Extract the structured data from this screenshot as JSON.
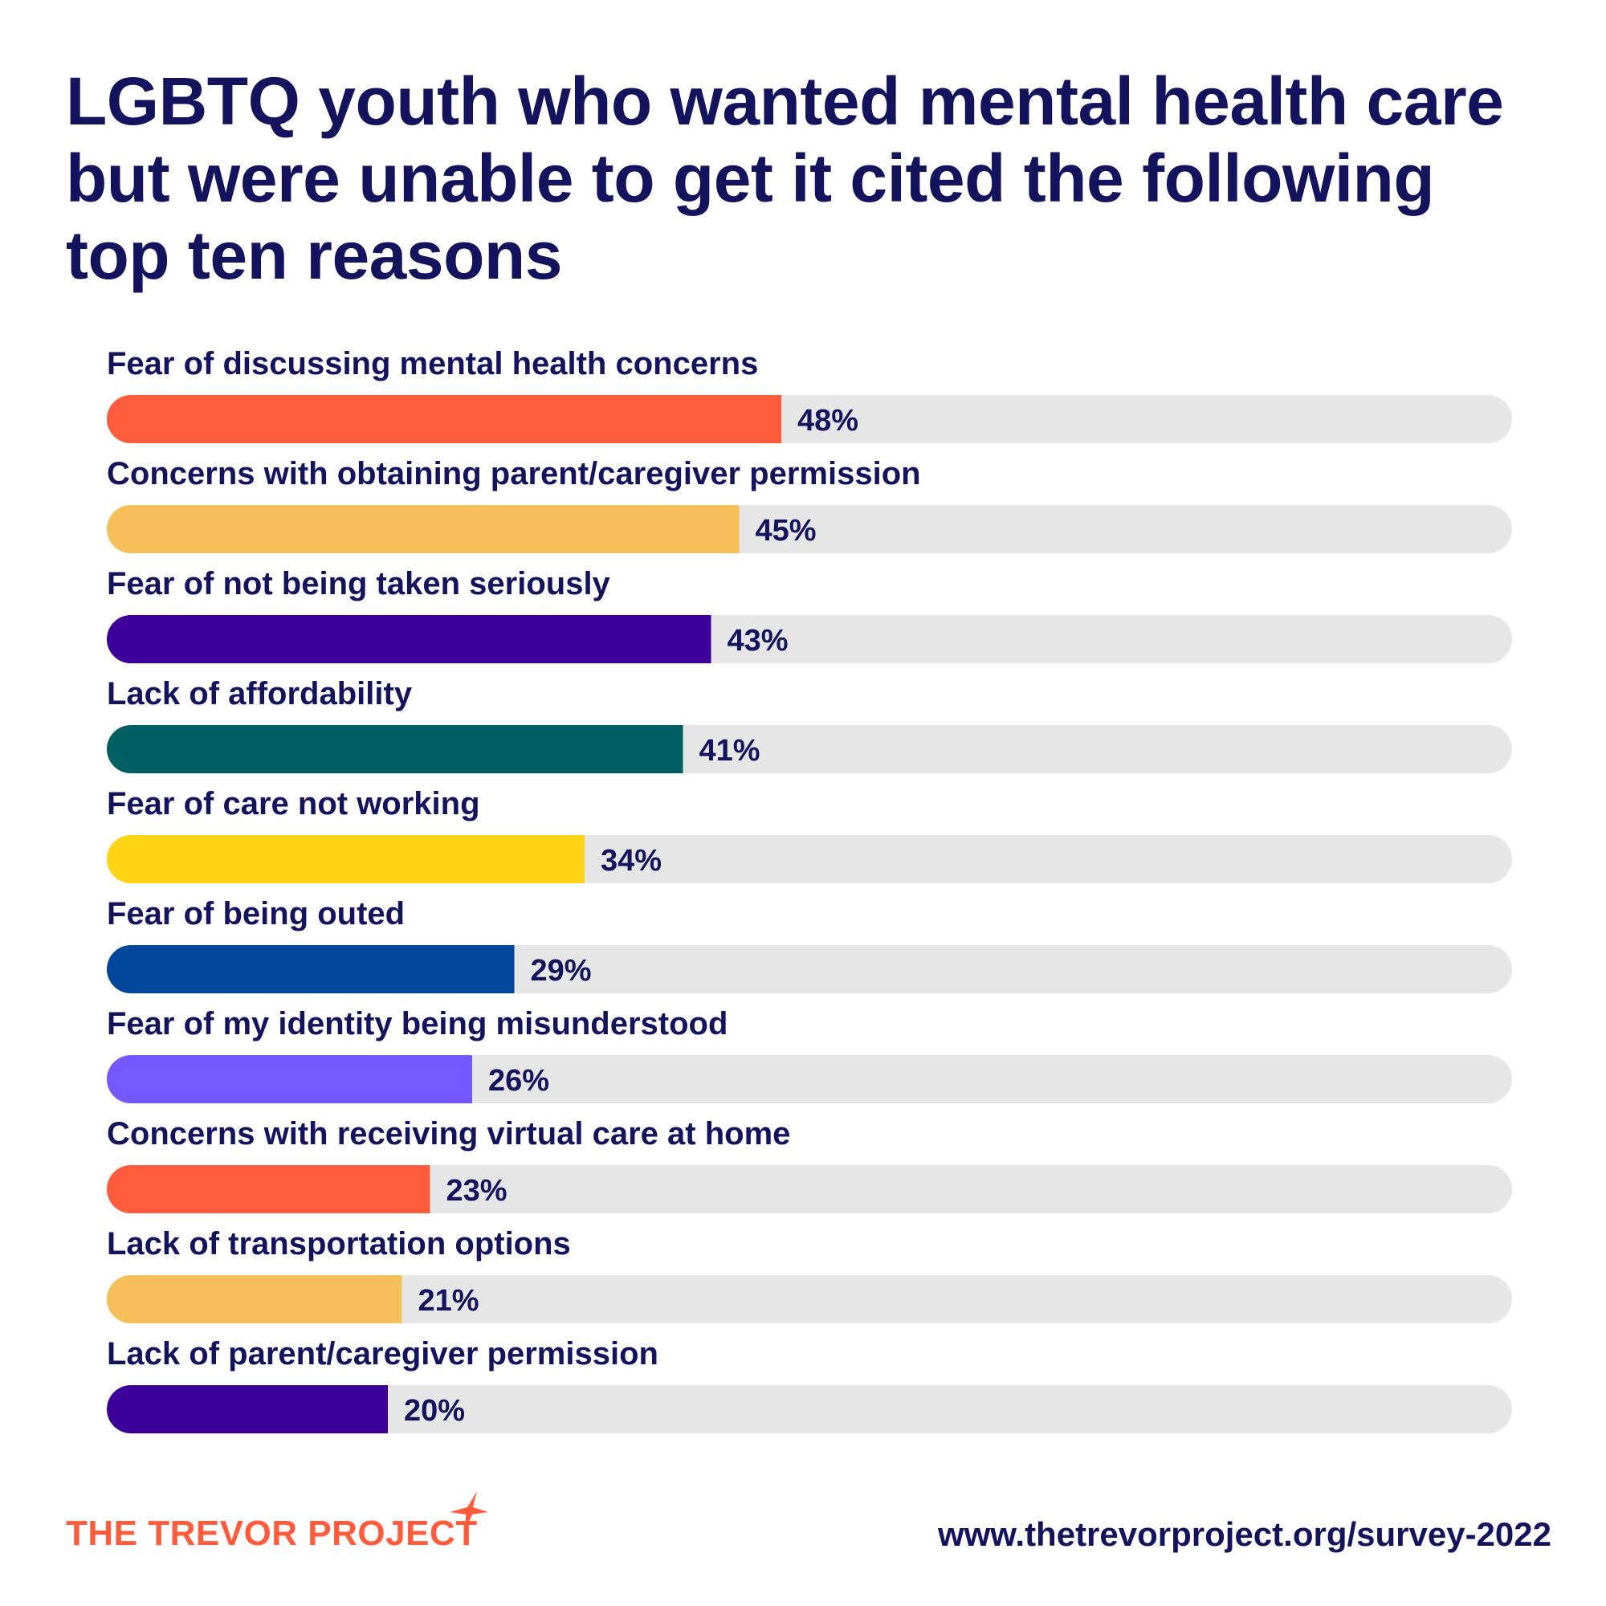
{
  "chart_data": {
    "type": "bar",
    "orientation": "horizontal",
    "title": "LGBTQ youth who wanted mental health care but were unable to get it cited the following top ten reasons",
    "categories": [
      "Fear of discussing mental health concerns",
      "Concerns with obtaining parent/caregiver permission",
      "Fear of not being taken seriously",
      "Lack of affordability",
      "Fear of care not working",
      "Fear of being outed",
      "Fear of my identity being misunderstood",
      "Concerns with receiving virtual care at home",
      "Lack of transportation options",
      "Lack of parent/caregiver permission"
    ],
    "values": [
      48,
      45,
      43,
      41,
      34,
      29,
      26,
      23,
      21,
      20
    ],
    "value_labels": [
      "48%",
      "45%",
      "43%",
      "41%",
      "34%",
      "29%",
      "26%",
      "23%",
      "21%",
      "20%"
    ],
    "bar_colors": [
      "#ff5c3d",
      "#f7bf5a",
      "#3d0099",
      "#005f63",
      "#ffd414",
      "#00479b",
      "#7359ff",
      "#ff5c3d",
      "#f7bf5a",
      "#3d0099"
    ],
    "track_color": "#e6e6e6",
    "xlim": [
      0,
      100
    ],
    "xlabel": "",
    "ylabel": "",
    "grid": false
  },
  "footer": {
    "logo_text": "THE TREVOR PROJECT",
    "logo_icon": "star-icon",
    "url": "www.thetrevorproject.org/survey-2022"
  },
  "colors": {
    "title": "#13135e",
    "brand": "#ff5c3d"
  }
}
